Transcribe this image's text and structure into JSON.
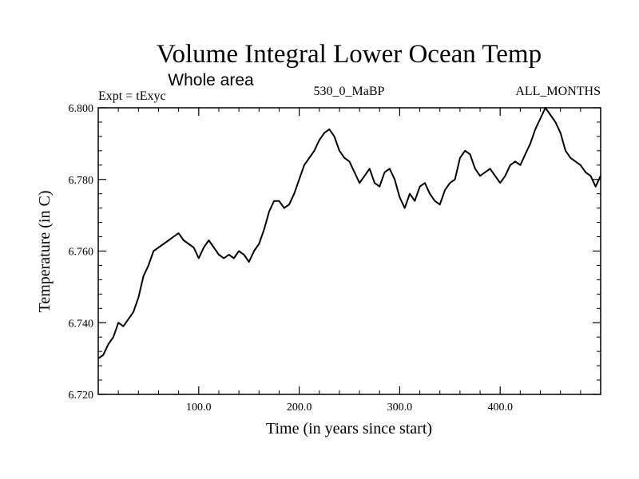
{
  "chart_data": {
    "type": "line",
    "title": "Volume Integral Lower Ocean Temp",
    "subtitle": "Whole area",
    "left_note": "Expt = tExyc",
    "center_note": "530_0_MaBP",
    "right_note": "ALL_MONTHS",
    "xlabel": "Time (in years since start)",
    "ylabel": "Temperature (in C)",
    "xlim": [
      0,
      500
    ],
    "ylim": [
      6.72,
      6.8
    ],
    "x_ticks": [
      100,
      200,
      300,
      400
    ],
    "x_tick_labels": [
      "100.0",
      "200.0",
      "300.0",
      "400.0"
    ],
    "y_ticks": [
      6.72,
      6.74,
      6.76,
      6.78,
      6.8
    ],
    "y_tick_labels": [
      "6.720",
      "6.740",
      "6.760",
      "6.780",
      "6.800"
    ],
    "grid": false,
    "series": [
      {
        "color": "#000000",
        "x": [
          0,
          5,
          10,
          15,
          20,
          25,
          30,
          35,
          40,
          45,
          50,
          55,
          60,
          65,
          70,
          75,
          80,
          85,
          90,
          95,
          100,
          105,
          110,
          115,
          120,
          125,
          130,
          135,
          140,
          145,
          150,
          155,
          160,
          165,
          170,
          175,
          180,
          185,
          190,
          195,
          200,
          205,
          210,
          215,
          220,
          225,
          230,
          235,
          240,
          245,
          250,
          255,
          260,
          265,
          270,
          275,
          280,
          285,
          290,
          295,
          300,
          305,
          310,
          315,
          320,
          325,
          330,
          335,
          340,
          345,
          350,
          355,
          360,
          365,
          370,
          375,
          380,
          385,
          390,
          395,
          400,
          405,
          410,
          415,
          420,
          425,
          430,
          435,
          440,
          445,
          450,
          455,
          460,
          465,
          470,
          475,
          480,
          485,
          490,
          495,
          500
        ],
        "y": [
          6.73,
          6.731,
          6.734,
          6.736,
          6.74,
          6.739,
          6.741,
          6.743,
          6.747,
          6.753,
          6.756,
          6.76,
          6.761,
          6.762,
          6.763,
          6.764,
          6.765,
          6.763,
          6.762,
          6.761,
          6.758,
          6.761,
          6.763,
          6.761,
          6.759,
          6.758,
          6.759,
          6.758,
          6.76,
          6.759,
          6.757,
          6.76,
          6.762,
          6.766,
          6.771,
          6.774,
          6.774,
          6.772,
          6.773,
          6.776,
          6.78,
          6.784,
          6.786,
          6.788,
          6.791,
          6.793,
          6.794,
          6.792,
          6.788,
          6.786,
          6.785,
          6.782,
          6.779,
          6.781,
          6.783,
          6.779,
          6.778,
          6.782,
          6.783,
          6.78,
          6.775,
          6.772,
          6.776,
          6.774,
          6.778,
          6.779,
          6.776,
          6.774,
          6.773,
          6.777,
          6.779,
          6.78,
          6.786,
          6.788,
          6.787,
          6.783,
          6.781,
          6.782,
          6.783,
          6.781,
          6.779,
          6.781,
          6.784,
          6.785,
          6.784,
          6.787,
          6.79,
          6.794,
          6.797,
          6.8,
          6.798,
          6.796,
          6.793,
          6.788,
          6.786,
          6.785,
          6.784,
          6.782,
          6.781,
          6.778,
          6.781
        ]
      }
    ]
  }
}
